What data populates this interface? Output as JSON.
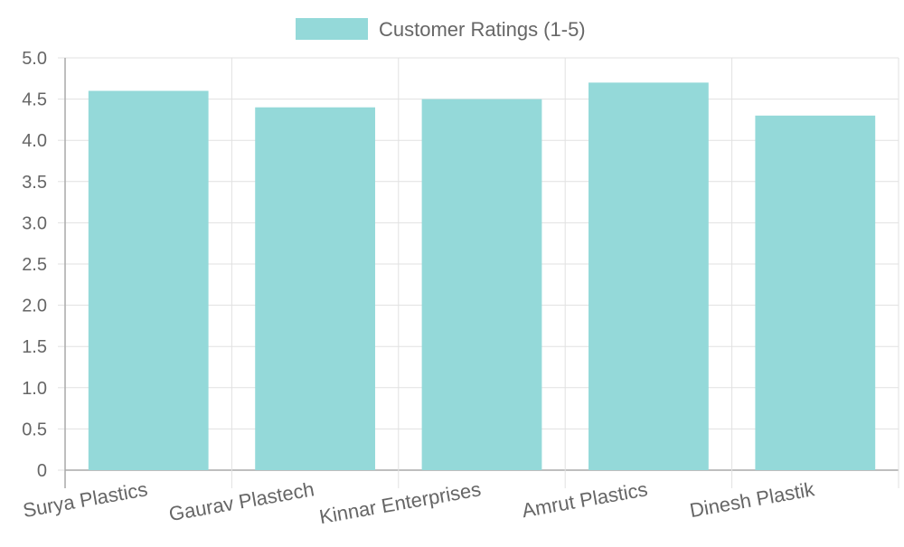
{
  "chart_data": {
    "type": "bar",
    "title": "",
    "xlabel": "",
    "ylabel": "",
    "categories": [
      "Surya Plastics",
      "Gaurav Plastech",
      "Kinnar Enterprises",
      "Amrut Plastics",
      "Dinesh Plastik"
    ],
    "series": [
      {
        "name": "Customer Ratings (1-5)",
        "values": [
          4.6,
          4.4,
          4.5,
          4.7,
          4.3
        ],
        "color": "#94d9d9"
      }
    ],
    "ylim": [
      0,
      5
    ],
    "yticks": [
      "0",
      "0.5",
      "1.0",
      "1.5",
      "2.0",
      "2.5",
      "3.0",
      "3.5",
      "4.0",
      "4.5",
      "5.0"
    ],
    "grid": true,
    "legend_position": "top-center",
    "colors": {
      "bar_fill": "#94d9d9",
      "grid": "#e1e1e1",
      "axis": "#a9a9a9",
      "text": "#666666"
    }
  }
}
